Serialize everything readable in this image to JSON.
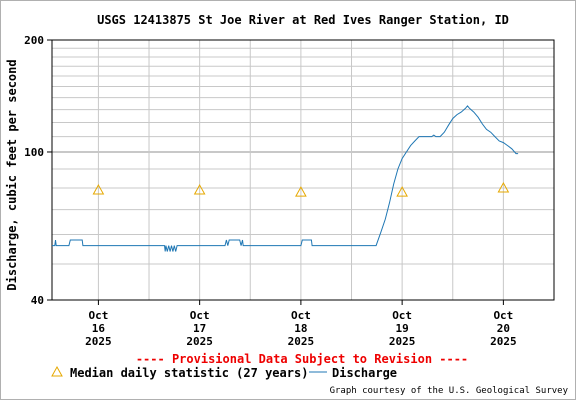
{
  "chart_data": {
    "type": "line",
    "title": "USGS 12413875 St Joe River at Red Ives Ranger Station, ID",
    "ylabel": "Discharge, cubic feet per second",
    "yscale": "log",
    "ylim": [
      40,
      200
    ],
    "yticks": [
      {
        "value": 40,
        "label": "40"
      },
      {
        "value": 100,
        "label": "100"
      },
      {
        "value": 200,
        "label": "200"
      }
    ],
    "xlim": [
      "2025-10-15T13:00",
      "2025-10-20T12:00"
    ],
    "xticks": [
      {
        "date": "2025-10-16T00:00",
        "label": [
          "Oct",
          "16",
          "2025"
        ]
      },
      {
        "date": "2025-10-17T00:00",
        "label": [
          "Oct",
          "17",
          "2025"
        ]
      },
      {
        "date": "2025-10-18T00:00",
        "label": [
          "Oct",
          "18",
          "2025"
        ]
      },
      {
        "date": "2025-10-19T00:00",
        "label": [
          "Oct",
          "19",
          "2025"
        ]
      },
      {
        "date": "2025-10-20T00:00",
        "label": [
          "Oct",
          "20",
          "2025"
        ]
      }
    ],
    "grid": true,
    "series": [
      {
        "name": "Discharge",
        "color": "#1f77b4",
        "points": [
          [
            "2025-10-15T13:00",
            56
          ],
          [
            "2025-10-15T13:40",
            56
          ],
          [
            "2025-10-15T13:50",
            58
          ],
          [
            "2025-10-15T14:00",
            56
          ],
          [
            "2025-10-15T17:00",
            56
          ],
          [
            "2025-10-15T17:20",
            58
          ],
          [
            "2025-10-15T20:10",
            58
          ],
          [
            "2025-10-15T20:20",
            56
          ],
          [
            "2025-10-16T15:40",
            56
          ],
          [
            "2025-10-16T15:50",
            54
          ],
          [
            "2025-10-16T16:00",
            56
          ],
          [
            "2025-10-16T16:20",
            54
          ],
          [
            "2025-10-16T16:40",
            56
          ],
          [
            "2025-10-16T17:00",
            54
          ],
          [
            "2025-10-16T17:20",
            56
          ],
          [
            "2025-10-16T17:40",
            54
          ],
          [
            "2025-10-16T18:00",
            56
          ],
          [
            "2025-10-16T18:20",
            54
          ],
          [
            "2025-10-16T18:40",
            56
          ],
          [
            "2025-10-17T06:00",
            56
          ],
          [
            "2025-10-17T06:20",
            58
          ],
          [
            "2025-10-17T06:40",
            56
          ],
          [
            "2025-10-17T07:00",
            58
          ],
          [
            "2025-10-17T09:30",
            58
          ],
          [
            "2025-10-17T09:50",
            56
          ],
          [
            "2025-10-17T10:10",
            58
          ],
          [
            "2025-10-17T10:20",
            56
          ],
          [
            "2025-10-18T00:00",
            56
          ],
          [
            "2025-10-18T00:20",
            58
          ],
          [
            "2025-10-18T02:30",
            58
          ],
          [
            "2025-10-18T02:40",
            56
          ],
          [
            "2025-10-18T17:50",
            56
          ],
          [
            "2025-10-18T19:00",
            61
          ],
          [
            "2025-10-18T20:00",
            66
          ],
          [
            "2025-10-18T21:00",
            73
          ],
          [
            "2025-10-18T22:00",
            82
          ],
          [
            "2025-10-18T23:00",
            90
          ],
          [
            "2025-10-19T00:00",
            96
          ],
          [
            "2025-10-19T01:00",
            100
          ],
          [
            "2025-10-19T02:00",
            104
          ],
          [
            "2025-10-19T03:00",
            107
          ],
          [
            "2025-10-19T04:00",
            110
          ],
          [
            "2025-10-19T07:00",
            110
          ],
          [
            "2025-10-19T07:30",
            111
          ],
          [
            "2025-10-19T08:00",
            110
          ],
          [
            "2025-10-19T09:00",
            110
          ],
          [
            "2025-10-19T10:00",
            113
          ],
          [
            "2025-10-19T11:00",
            118
          ],
          [
            "2025-10-19T12:00",
            123
          ],
          [
            "2025-10-19T13:00",
            126
          ],
          [
            "2025-10-19T14:00",
            128
          ],
          [
            "2025-10-19T15:00",
            131
          ],
          [
            "2025-10-19T15:30",
            133
          ],
          [
            "2025-10-19T16:00",
            131
          ],
          [
            "2025-10-19T17:00",
            128
          ],
          [
            "2025-10-19T18:00",
            124
          ],
          [
            "2025-10-19T19:00",
            119
          ],
          [
            "2025-10-19T20:00",
            115
          ],
          [
            "2025-10-19T21:00",
            113
          ],
          [
            "2025-10-19T22:00",
            110
          ],
          [
            "2025-10-19T23:00",
            107
          ],
          [
            "2025-10-20T00:00",
            106
          ],
          [
            "2025-10-20T01:00",
            104
          ],
          [
            "2025-10-20T02:00",
            102
          ],
          [
            "2025-10-20T03:00",
            99
          ],
          [
            "2025-10-20T03:30",
            99
          ]
        ]
      },
      {
        "name": "Median daily statistic (27 years)",
        "marker": "triangle",
        "color": "#e6a800",
        "points": [
          [
            "2025-10-16T00:00",
            79
          ],
          [
            "2025-10-17T00:00",
            79
          ],
          [
            "2025-10-18T00:00",
            78
          ],
          [
            "2025-10-19T00:00",
            78
          ],
          [
            "2025-10-20T00:00",
            80
          ]
        ]
      }
    ]
  },
  "provisional_note": "---- Provisional Data Subject to Revision ----",
  "legend": {
    "median_label": "Median daily statistic (27 years)",
    "discharge_label": "Discharge"
  },
  "credit": "Graph courtesy of the U.S. Geological Survey"
}
